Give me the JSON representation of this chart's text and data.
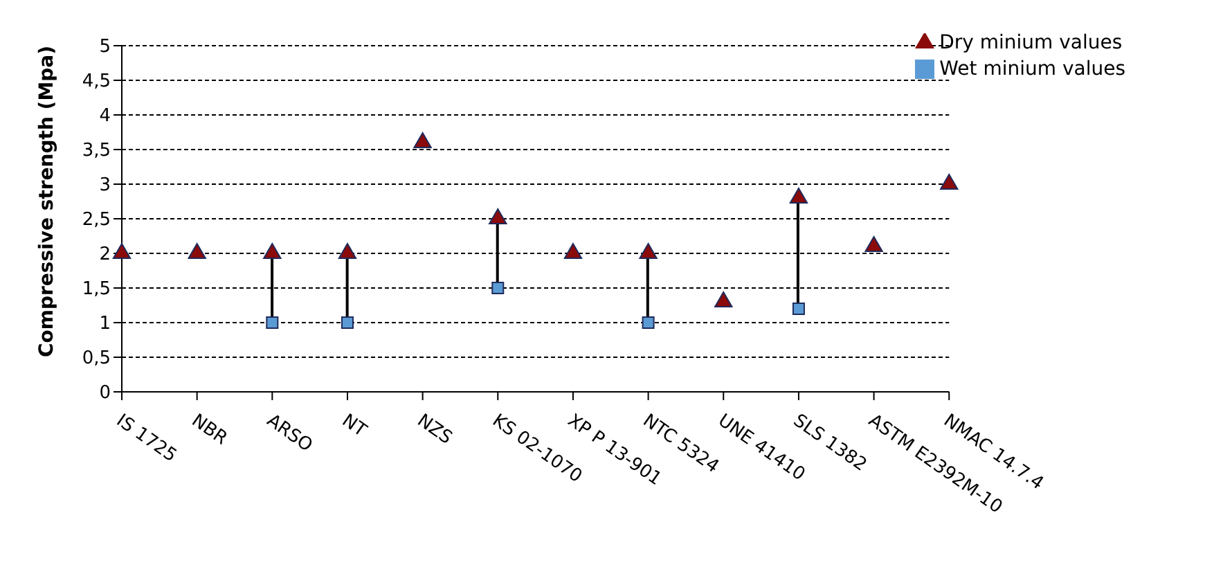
{
  "chart_data": {
    "type": "scatter",
    "ylabel": "Compressive strength (Mpa)",
    "categories": [
      "IS 1725",
      "NBR",
      "ARSO",
      "NT",
      "NZS",
      "KS 02-1070",
      "XP P 13-901",
      "NTC 5324",
      "UNE 41410",
      "SLS 1382",
      "ASTM E2392M-10",
      "NMAC 14.7.4"
    ],
    "series": [
      {
        "name": "Dry minium values",
        "color": "#8b0a0a",
        "marker": "triangle",
        "values": [
          2,
          2,
          2,
          2,
          3.6,
          2.5,
          2,
          2,
          1.3,
          2.8,
          2.1,
          3
        ]
      },
      {
        "name": "Wet minium values",
        "color": "#5b9bd5",
        "marker": "square",
        "values": [
          null,
          null,
          1,
          1,
          null,
          1.5,
          null,
          1,
          null,
          1.2,
          null,
          null
        ]
      }
    ],
    "ylim": [
      0,
      5
    ],
    "yticks": [
      0,
      {
        "value": 0.5,
        "label": "0,5"
      },
      1,
      {
        "value": 1.5,
        "label": "1,5"
      },
      2,
      {
        "value": 2.5,
        "label": "2,5"
      },
      3,
      {
        "value": 3.5,
        "label": "3,5"
      },
      4,
      {
        "value": 4.5,
        "label": "4,5"
      },
      5
    ],
    "grid": "y",
    "legend": "top right"
  }
}
